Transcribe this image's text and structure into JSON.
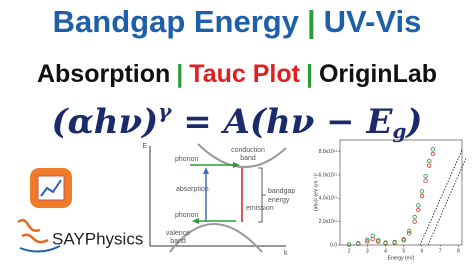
{
  "header": {
    "line1": [
      "Bandgap Energy",
      "|",
      "UV-Vis"
    ],
    "line2": [
      "Absorption",
      "|",
      "Tauc Plot",
      "|",
      "OriginLab"
    ],
    "formula": [
      "(αhν)",
      "γ",
      " = A(hν − E",
      "g",
      ")"
    ]
  },
  "diagram": {
    "axis_e": "E",
    "axis_k": "k",
    "conduction": [
      "conduction",
      "band"
    ],
    "valence": [
      "valence",
      "band"
    ],
    "phonon_top": "phonon",
    "phonon_bottom": "phonon",
    "absorption": "absorption",
    "emission": "emission",
    "bandgap": [
      "bandgap",
      "energy"
    ]
  },
  "logo": {
    "name": "SAYPhysics"
  },
  "chart_data": {
    "type": "scatter",
    "x_label": "Energy (eV)",
    "y_label": "(αhν)² (eV cm⁻¹)²",
    "xlim": [
      1.5,
      8.2
    ],
    "ylim": [
      0,
      900000000000.0
    ],
    "xticks": [
      2,
      3,
      4,
      5,
      6,
      7,
      8
    ],
    "yticks": [
      {
        "value": 0,
        "label": "0.0"
      },
      {
        "value": 200000000000.0,
        "label": "2.0x10¹¹"
      },
      {
        "value": 400000000000.0,
        "label": "4.0x10¹¹"
      },
      {
        "value": 600000000000.0,
        "label": "6.0x10¹¹"
      },
      {
        "value": 800000000000.0,
        "label": "8.0x10¹¹"
      }
    ],
    "series": [
      {
        "color": "#e03030",
        "x": [
          2,
          2.5,
          3,
          3.3,
          3.6,
          4,
          4.5,
          5,
          5.3,
          5.6,
          5.8,
          6,
          6.2,
          6.4,
          6.6
        ],
        "values": [
          5000000000.0,
          10000000000.0,
          30000000000.0,
          50000000000.0,
          30000000000.0,
          15000000000.0,
          20000000000.0,
          40000000000.0,
          100000000000.0,
          200000000000.0,
          300000000000.0,
          420000000000.0,
          550000000000.0,
          680000000000.0,
          780000000000.0
        ]
      },
      {
        "color": "#2a9d3a",
        "x": [
          2,
          2.5,
          3,
          3.3,
          3.6,
          4,
          4.5,
          5,
          5.3,
          5.6,
          5.8,
          6,
          6.2,
          6.4,
          6.6
        ],
        "values": [
          5000000000.0,
          15000000000.0,
          45000000000.0,
          80000000000.0,
          40000000000.0,
          20000000000.0,
          25000000000.0,
          50000000000.0,
          120000000000.0,
          240000000000.0,
          340000000000.0,
          460000000000.0,
          590000000000.0,
          720000000000.0,
          820000000000.0
        ]
      }
    ]
  }
}
